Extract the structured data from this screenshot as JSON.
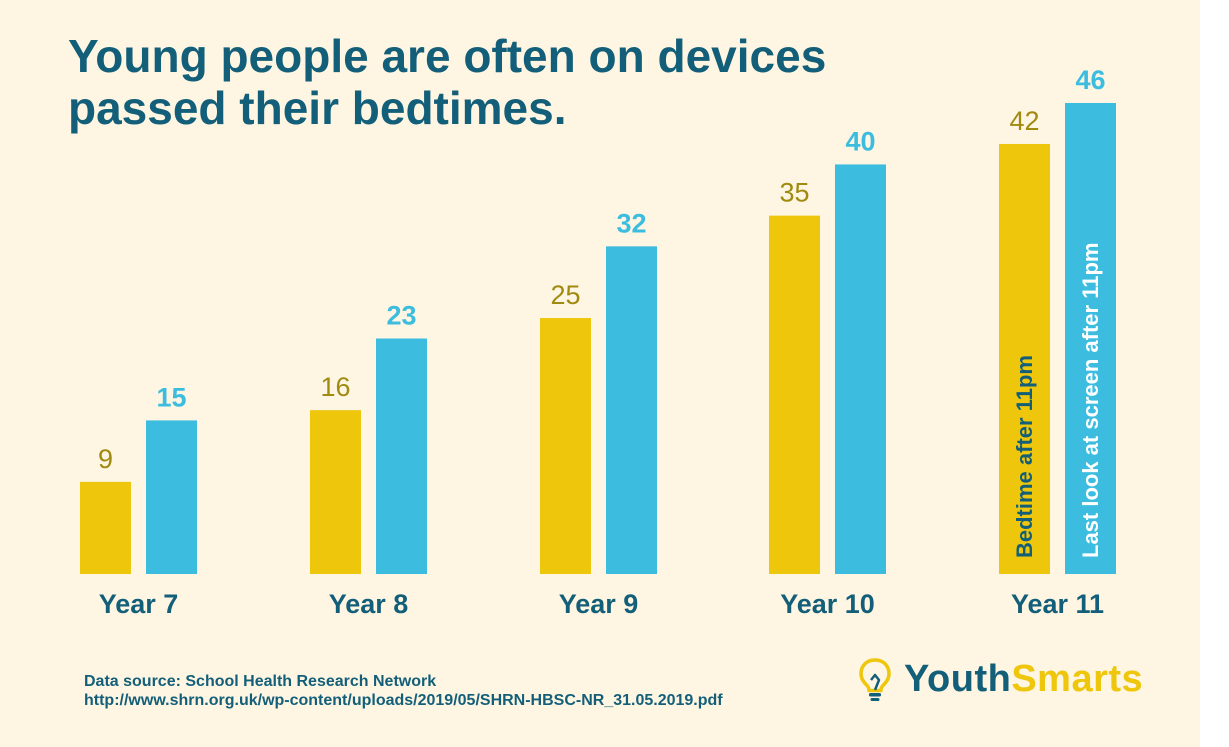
{
  "title": "Young people are often on devices passed their bedtimes.",
  "chart_data": {
    "type": "bar",
    "title": "Young people are often on devices passed their bedtimes.",
    "categories": [
      "Year 7",
      "Year 8",
      "Year 9",
      "Year 10",
      "Year 11"
    ],
    "series": [
      {
        "name": "Bedtime after 11pm",
        "values": [
          9,
          16,
          25,
          35,
          42
        ],
        "color": "#eec60b",
        "label_color": "#a08a10"
      },
      {
        "name": "Last look at screen after 11pm",
        "values": [
          15,
          23,
          32,
          40,
          46
        ],
        "color": "#3cbde0",
        "label_color": "#3cbde0"
      }
    ],
    "xlabel": "",
    "ylabel": "",
    "ylim": [
      0,
      46
    ],
    "legend": "inside the Year 11 bars, vertical text",
    "legend_text_color": "#135f79"
  },
  "footer": {
    "source_line": "Data source: School Health Research Network",
    "source_url": "http://www.shrn.org.uk/wp-content/uploads/2019/05/SHRN-HBSC-NR_31.05.2019.pdf"
  },
  "brand": {
    "icon": "lightbulb-icon",
    "name_part1": "Youth",
    "name_part2": "Smarts"
  },
  "colors": {
    "background": "#fef6e2",
    "title": "#135f79",
    "bar_a": "#eec60b",
    "bar_b": "#3cbde0"
  }
}
